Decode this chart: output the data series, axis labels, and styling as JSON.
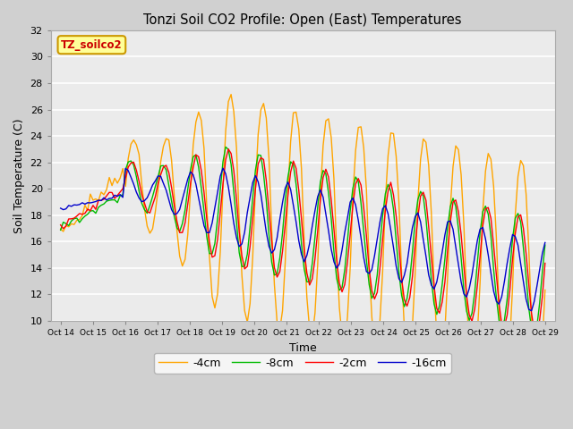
{
  "title": "Tonzi Soil CO2 Profile: Open (East) Temperatures",
  "ylabel": "Soil Temperature (C)",
  "xlabel": "Time",
  "ylim": [
    10,
    32
  ],
  "yticks": [
    10,
    12,
    14,
    16,
    18,
    20,
    22,
    24,
    26,
    28,
    30,
    32
  ],
  "legend_title": "TZ_soilco2",
  "legend_title_color": "#cc0000",
  "line_colors": {
    "-2cm": "#ff0000",
    "-4cm": "#ffa500",
    "-8cm": "#00bb00",
    "-16cm": "#0000cc"
  },
  "line_width": 1.0,
  "fig_bg": "#d0d0d0",
  "axes_bg": "#ebebeb",
  "grid_color": "#ffffff",
  "xtick_labels": [
    "Oct 14",
    "Oct 15",
    "Oct 16",
    "Oct 17",
    "Oct 18",
    "Oct 19",
    "Oct 20",
    "Oct 21",
    "Oct 22",
    "Oct 23",
    "Oct 24",
    "Oct 25",
    "Oct 26",
    "Oct 27",
    "Oct 28",
    "Oct 29"
  ]
}
